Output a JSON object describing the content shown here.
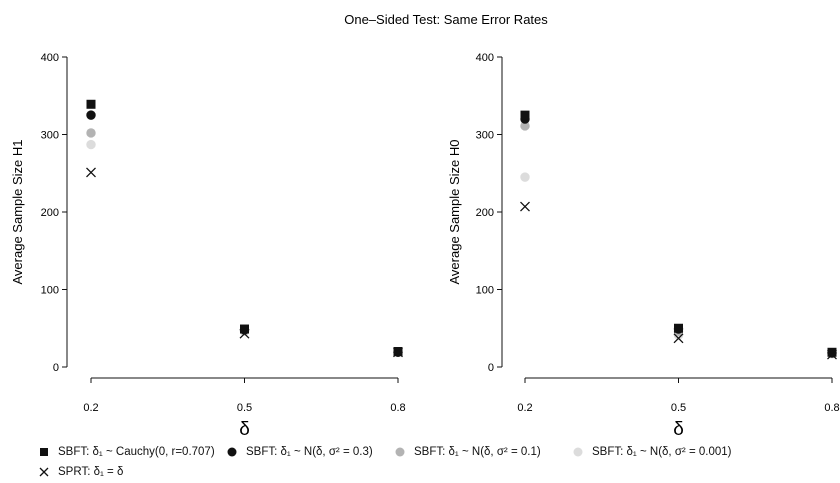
{
  "title": "One–Sided Test: Same Error Rates",
  "legend": [
    {
      "label": "SBFT: δ₁ ~ Cauchy(0, r=0.707)",
      "marker": "square",
      "color": "#111111"
    },
    {
      "label": "SBFT: δ₁ ~ N(δ, σ² = 0.3)",
      "marker": "circle",
      "color": "#111111"
    },
    {
      "label": "SBFT: δ₁ ~ N(δ, σ² = 0.1)",
      "marker": "circle",
      "color": "#b3b3b3"
    },
    {
      "label": "SBFT: δ₁ ~ N(δ, σ² = 0.001)",
      "marker": "circle",
      "color": "#dcdcdc"
    },
    {
      "label": "SPRT: δ₁ = δ",
      "marker": "cross",
      "color": "#111111"
    }
  ],
  "chart_data": [
    {
      "type": "scatter",
      "xlabel": "δ",
      "ylabel": "Average Sample Size H1",
      "x": [
        0.2,
        0.5,
        0.8
      ],
      "xticks": [
        "0.2",
        "0.5",
        "0.8"
      ],
      "ylim": [
        0,
        400
      ],
      "yticks": [
        0,
        100,
        200,
        300,
        400
      ],
      "grid": false,
      "series": [
        {
          "name": "SBFT: δ₁ ~ Cauchy(0, r=0.707)",
          "marker": "square",
          "color": "#111111",
          "values": [
            339,
            49,
            20
          ]
        },
        {
          "name": "SBFT: δ₁ ~ N(δ, σ² = 0.3)",
          "marker": "circle",
          "color": "#111111",
          "values": [
            325,
            48,
            19
          ]
        },
        {
          "name": "SBFT: δ₁ ~ N(δ, σ² = 0.1)",
          "marker": "circle",
          "color": "#b3b3b3",
          "values": [
            302,
            47,
            19
          ]
        },
        {
          "name": "SBFT: δ₁ ~ N(δ, σ² = 0.001)",
          "marker": "circle",
          "color": "#dcdcdc",
          "values": [
            287,
            46,
            19
          ]
        },
        {
          "name": "SPRT: δ₁ = δ",
          "marker": "cross",
          "color": "#111111",
          "values": [
            251,
            43,
            19
          ]
        }
      ]
    },
    {
      "type": "scatter",
      "xlabel": "δ",
      "ylabel": "Average Sample Size H0",
      "x": [
        0.2,
        0.5,
        0.8
      ],
      "xticks": [
        "0.2",
        "0.5",
        "0.8"
      ],
      "ylim": [
        0,
        400
      ],
      "yticks": [
        0,
        100,
        200,
        300,
        400
      ],
      "grid": false,
      "series": [
        {
          "name": "SBFT: δ₁ ~ Cauchy(0, r=0.707)",
          "marker": "square",
          "color": "#111111",
          "values": [
            325,
            50,
            19
          ]
        },
        {
          "name": "SBFT: δ₁ ~ N(δ, σ² = 0.3)",
          "marker": "circle",
          "color": "#111111",
          "values": [
            320,
            49,
            18
          ]
        },
        {
          "name": "SBFT: δ₁ ~ N(δ, σ² = 0.1)",
          "marker": "circle",
          "color": "#b3b3b3",
          "values": [
            311,
            46,
            18
          ]
        },
        {
          "name": "SBFT: δ₁ ~ N(δ, σ² = 0.001)",
          "marker": "circle",
          "color": "#dcdcdc",
          "values": [
            245,
            41,
            17
          ]
        },
        {
          "name": "SPRT: δ₁ = δ",
          "marker": "cross",
          "color": "#111111",
          "values": [
            207,
            37,
            16
          ]
        }
      ]
    }
  ]
}
